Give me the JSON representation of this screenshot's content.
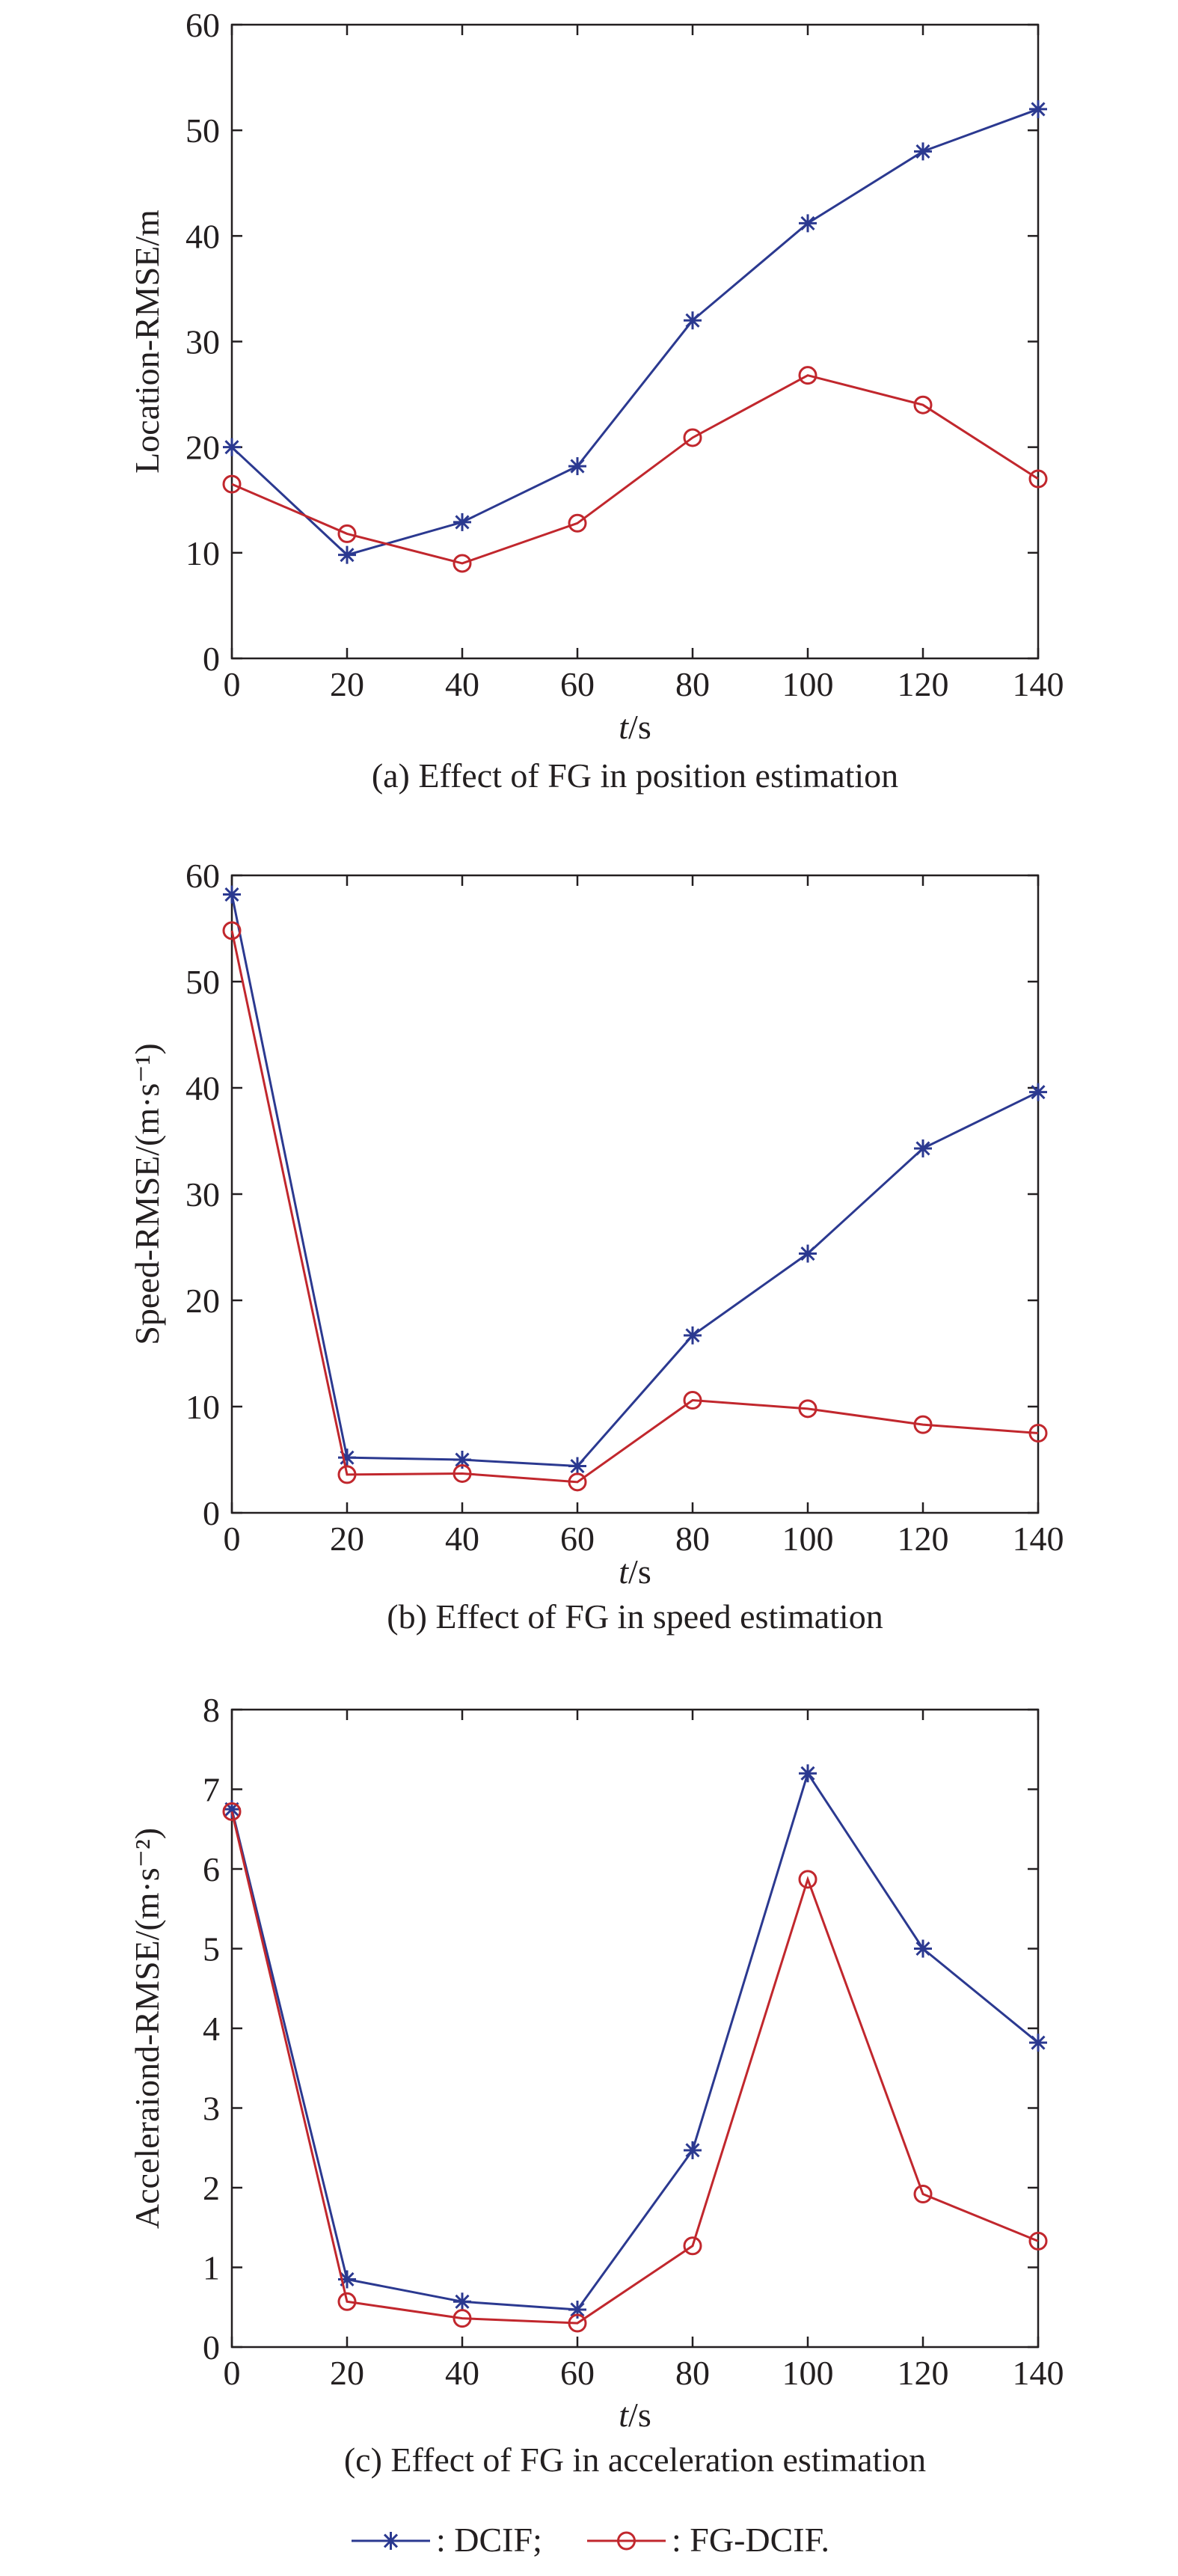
{
  "colors": {
    "DCIF": "#2b3990",
    "FG-DCIF": "#c1272d"
  },
  "legend": {
    "items": [
      {
        "series": "DCIF",
        "label": ": DCIF;",
        "marker": "star-icon"
      },
      {
        "series": "FG-DCIF",
        "label": ": FG-DCIF.",
        "marker": "circle-icon"
      }
    ]
  },
  "chart_data": [
    {
      "type": "line",
      "caption": "(a) Effect of FG in position estimation",
      "xlabel_italic": "t",
      "xlabel_rest": "/s",
      "ylabel": "Location-RMSE/m",
      "xlim": [
        0,
        140
      ],
      "ylim": [
        0,
        60
      ],
      "xticks": [
        0,
        20,
        40,
        60,
        80,
        100,
        120,
        140
      ],
      "yticks": [
        0,
        10,
        20,
        30,
        40,
        50,
        60
      ],
      "x": [
        0,
        20,
        40,
        60,
        80,
        100,
        120,
        140
      ],
      "series": [
        {
          "name": "DCIF",
          "marker": "star",
          "values": [
            20,
            9.8,
            12.9,
            18.2,
            32,
            41.2,
            48,
            52
          ]
        },
        {
          "name": "FG-DCIF",
          "marker": "circle",
          "values": [
            16.5,
            11.8,
            9,
            12.8,
            20.9,
            26.8,
            24,
            17
          ]
        }
      ]
    },
    {
      "type": "line",
      "caption": "(b) Effect of FG in speed estimation",
      "xlabel_italic": "t",
      "xlabel_rest": "/s",
      "ylabel": "Speed-RMSE/(m·s⁻¹)",
      "xlim": [
        0,
        140
      ],
      "ylim": [
        0,
        60
      ],
      "xticks": [
        0,
        20,
        40,
        60,
        80,
        100,
        120,
        140
      ],
      "yticks": [
        0,
        10,
        20,
        30,
        40,
        50,
        60
      ],
      "x": [
        0,
        20,
        40,
        60,
        80,
        100,
        120,
        140
      ],
      "series": [
        {
          "name": "DCIF",
          "marker": "star",
          "values": [
            58.2,
            5.2,
            5,
            4.4,
            16.7,
            24.4,
            34.3,
            39.6
          ]
        },
        {
          "name": "FG-DCIF",
          "marker": "circle",
          "values": [
            54.8,
            3.6,
            3.7,
            2.9,
            10.6,
            9.8,
            8.3,
            7.5
          ]
        }
      ]
    },
    {
      "type": "line",
      "caption": "(c) Effect of FG in acceleration estimation",
      "xlabel_italic": "t",
      "xlabel_rest": "/s",
      "ylabel": "Acceleraiond-RMSE/(m·s⁻²)",
      "xlim": [
        0,
        140
      ],
      "ylim": [
        0,
        8
      ],
      "xticks": [
        0,
        20,
        40,
        60,
        80,
        100,
        120,
        140
      ],
      "yticks": [
        0,
        1,
        2,
        3,
        4,
        5,
        6,
        7,
        8
      ],
      "x": [
        0,
        20,
        40,
        60,
        80,
        100,
        120,
        140
      ],
      "series": [
        {
          "name": "DCIF",
          "marker": "star",
          "values": [
            6.75,
            0.85,
            0.57,
            0.47,
            2.47,
            7.2,
            5,
            3.82
          ]
        },
        {
          "name": "FG-DCIF",
          "marker": "circle",
          "values": [
            6.72,
            0.57,
            0.36,
            0.3,
            1.27,
            5.87,
            1.92,
            1.33
          ]
        }
      ]
    }
  ]
}
